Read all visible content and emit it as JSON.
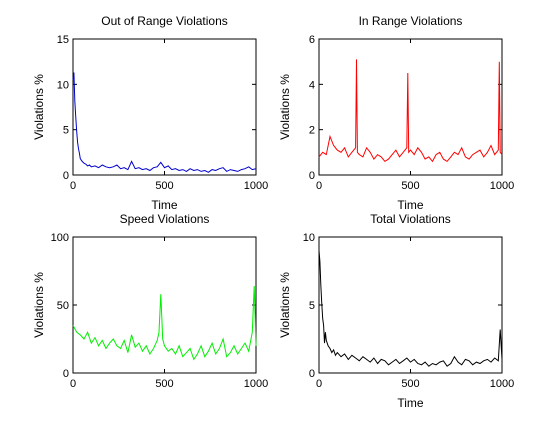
{
  "chart_data": [
    {
      "type": "line",
      "title": "Out of Range Violations",
      "xlabel": "Time",
      "ylabel": "Violations %",
      "xlim": [
        0,
        1000
      ],
      "ylim": [
        0,
        15
      ],
      "xticks": [
        "0",
        "500",
        "1000"
      ],
      "yticks": [
        "0",
        "5",
        "10",
        "15"
      ],
      "series": [
        {
          "color": "#0000cc",
          "x": [
            0,
            5,
            10,
            15,
            20,
            25,
            30,
            35,
            40,
            50,
            60,
            70,
            80,
            90,
            100,
            120,
            140,
            160,
            180,
            200,
            220,
            240,
            260,
            280,
            300,
            320,
            340,
            360,
            380,
            400,
            420,
            440,
            460,
            480,
            500,
            520,
            540,
            560,
            580,
            600,
            620,
            640,
            660,
            680,
            700,
            720,
            740,
            760,
            780,
            800,
            820,
            840,
            860,
            880,
            900,
            920,
            940,
            960,
            980,
            1000
          ],
          "y": [
            10.5,
            11.3,
            8.2,
            6.5,
            4.8,
            3.6,
            2.9,
            2.4,
            1.8,
            1.5,
            1.3,
            1.2,
            1.0,
            1.1,
            0.9,
            1.0,
            0.8,
            1.1,
            0.9,
            0.8,
            0.9,
            1.1,
            0.7,
            0.8,
            0.6,
            1.5,
            0.7,
            0.8,
            0.6,
            0.7,
            0.5,
            0.8,
            0.9,
            1.4,
            0.8,
            1.0,
            0.6,
            0.7,
            0.5,
            0.6,
            0.4,
            0.7,
            0.5,
            0.6,
            0.4,
            0.5,
            0.3,
            0.6,
            0.5,
            0.7,
            0.8,
            0.4,
            0.6,
            0.5,
            0.4,
            0.6,
            0.7,
            0.9,
            0.6,
            0.7
          ]
        }
      ]
    },
    {
      "type": "line",
      "title": "In Range Violations",
      "xlabel": "Time",
      "ylabel": "Violations %",
      "xlim": [
        0,
        1000
      ],
      "ylim": [
        0,
        6
      ],
      "xticks": [
        "0",
        "500",
        "1000"
      ],
      "yticks": [
        "0",
        "2",
        "4",
        "6"
      ],
      "series": [
        {
          "color": "#ff0000",
          "x": [
            0,
            20,
            40,
            60,
            80,
            100,
            120,
            140,
            160,
            180,
            200,
            205,
            210,
            220,
            240,
            260,
            280,
            300,
            320,
            340,
            360,
            380,
            400,
            420,
            440,
            460,
            480,
            485,
            490,
            500,
            520,
            540,
            560,
            580,
            600,
            620,
            640,
            660,
            680,
            700,
            720,
            740,
            760,
            780,
            800,
            820,
            840,
            860,
            880,
            900,
            920,
            940,
            960,
            980,
            985,
            990,
            1000
          ],
          "y": [
            0.8,
            1.0,
            0.9,
            1.7,
            1.3,
            1.1,
            1.0,
            1.2,
            0.8,
            1.0,
            1.2,
            5.1,
            1.0,
            0.9,
            0.8,
            1.2,
            1.0,
            0.7,
            0.9,
            0.8,
            0.6,
            0.7,
            0.9,
            1.1,
            0.8,
            1.0,
            1.2,
            4.5,
            1.0,
            1.1,
            0.9,
            1.2,
            1.0,
            0.7,
            0.8,
            0.6,
            0.9,
            1.0,
            0.7,
            0.6,
            0.8,
            1.0,
            0.9,
            1.2,
            0.8,
            0.7,
            0.9,
            1.0,
            1.1,
            0.8,
            1.0,
            1.3,
            0.9,
            1.1,
            5.0,
            1.0,
            0.9
          ]
        }
      ]
    },
    {
      "type": "line",
      "title": "Speed Violations",
      "xlabel": "",
      "ylabel": "Violations %",
      "xlim": [
        0,
        1000
      ],
      "ylim": [
        0,
        100
      ],
      "xticks": [
        "0",
        "500",
        "1000"
      ],
      "yticks": [
        "0",
        "50",
        "100"
      ],
      "series": [
        {
          "color": "#00ee00",
          "x": [
            0,
            20,
            40,
            60,
            80,
            100,
            120,
            140,
            160,
            180,
            200,
            220,
            240,
            260,
            280,
            300,
            320,
            340,
            360,
            380,
            400,
            420,
            440,
            460,
            470,
            480,
            490,
            500,
            520,
            540,
            560,
            580,
            600,
            620,
            640,
            660,
            680,
            700,
            720,
            740,
            760,
            780,
            800,
            820,
            840,
            860,
            880,
            900,
            920,
            940,
            960,
            980,
            990,
            1000
          ],
          "y": [
            35,
            30,
            28,
            25,
            30,
            22,
            26,
            20,
            24,
            18,
            22,
            25,
            20,
            18,
            24,
            15,
            28,
            19,
            22,
            16,
            20,
            14,
            18,
            24,
            30,
            58,
            25,
            20,
            16,
            18,
            14,
            20,
            12,
            15,
            18,
            10,
            14,
            20,
            12,
            16,
            22,
            14,
            18,
            25,
            12,
            15,
            20,
            14,
            18,
            22,
            16,
            30,
            64,
            20
          ]
        }
      ]
    },
    {
      "type": "line",
      "title": "Total Violations",
      "xlabel": "Time",
      "ylabel": "Violations %",
      "xlim": [
        0,
        1000
      ],
      "ylim": [
        0,
        10
      ],
      "xticks": [
        "0",
        "500",
        "1000"
      ],
      "yticks": [
        "0",
        "5",
        "10"
      ],
      "series": [
        {
          "color": "#000000",
          "x": [
            0,
            5,
            10,
            15,
            20,
            25,
            30,
            35,
            40,
            50,
            60,
            70,
            80,
            90,
            100,
            120,
            140,
            160,
            180,
            200,
            220,
            240,
            260,
            280,
            300,
            320,
            340,
            360,
            380,
            400,
            420,
            440,
            460,
            480,
            500,
            520,
            540,
            560,
            580,
            600,
            620,
            640,
            660,
            680,
            700,
            720,
            740,
            760,
            780,
            800,
            820,
            840,
            860,
            880,
            900,
            920,
            940,
            960,
            980,
            990,
            1000
          ],
          "y": [
            9.0,
            8.2,
            6.5,
            5.2,
            4.0,
            3.5,
            2.2,
            3.0,
            2.4,
            2.0,
            1.8,
            1.5,
            1.7,
            1.3,
            1.5,
            1.2,
            1.4,
            1.0,
            1.3,
            1.1,
            0.9,
            1.2,
            1.0,
            0.8,
            1.1,
            0.7,
            1.0,
            0.9,
            0.6,
            0.8,
            1.0,
            0.7,
            0.9,
            1.1,
            0.8,
            1.0,
            0.7,
            0.6,
            0.8,
            0.5,
            0.7,
            0.6,
            0.8,
            0.9,
            0.5,
            0.7,
            1.2,
            0.8,
            0.6,
            1.0,
            0.9,
            0.6,
            0.8,
            0.7,
            0.9,
            1.0,
            0.8,
            1.1,
            0.9,
            3.2,
            1.0
          ]
        }
      ]
    }
  ]
}
